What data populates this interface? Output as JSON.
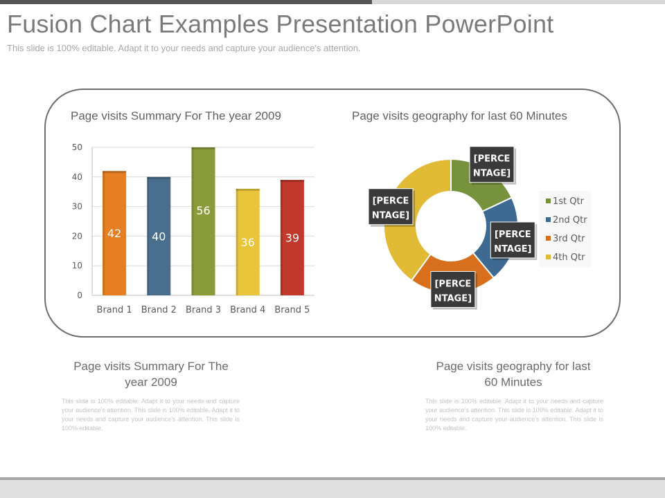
{
  "slide": {
    "title": "Fusion Chart Examples Presentation PowerPoint",
    "subtitle": "This slide is 100% editable. Adapt it to your needs and capture your audience's attention."
  },
  "captions": {
    "left": {
      "title": "Page visits Summary For The year 2009",
      "text": "This slide is 100% editable. Adapt it to your needs and capture your audience's attention. This slide is 100% editable. Adapt it to your needs and capture your audience's attention. This slide is 100% editable."
    },
    "right": {
      "title": "Page visits geography for last 60 Minutes",
      "text": "This slide is 100% editable. Adapt it to your needs and capture your audience's attention. This slide is 100% editable. Adapt it to your needs and capture your audience's attention. This slide is 100% editable."
    }
  },
  "colors": {
    "orange": "#e67e22",
    "blue": "#4a6f8e",
    "green": "#8a9b3a",
    "yellow": "#e8c43a",
    "red": "#c0392b",
    "pie_green": "#76923c",
    "pie_blue": "#3e6a91",
    "pie_orange": "#d86f1c",
    "pie_yellow": "#e1bb35"
  },
  "chart_data": [
    {
      "type": "bar",
      "title": "Page visits Summary For The year 2009",
      "categories": [
        "Brand 1",
        "Brand 2",
        "Brand 3",
        "Brand 4",
        "Brand 5"
      ],
      "values": [
        42,
        40,
        56,
        36,
        39
      ],
      "data_labels": [
        "42",
        "40",
        "56",
        "36",
        "39"
      ],
      "ylim": [
        0,
        50
      ],
      "yticks": [
        0,
        10,
        20,
        30,
        40,
        50
      ],
      "grid": true,
      "legend": "none"
    },
    {
      "type": "pie",
      "style": "donut",
      "title": "Page visits geography for last 60 Minutes",
      "categories": [
        "1st Qtr",
        "2nd Qtr",
        "3rd Qtr",
        "4th Qtr"
      ],
      "values": [
        18,
        21,
        21,
        40
      ],
      "data_labels": [
        "[PERCENTAGE]",
        "[PERCENTAGE]",
        "[PERCENTAGE]",
        "[PERCENTAGE]"
      ],
      "legend": "right"
    }
  ]
}
